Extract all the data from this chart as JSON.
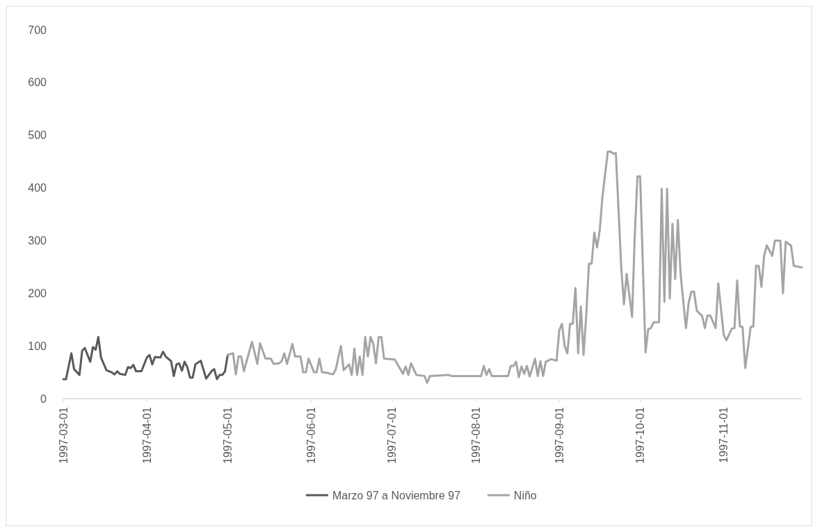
{
  "chart_data": {
    "type": "line",
    "xlim": [
      "1997-03-01",
      "1997-11-30"
    ],
    "xticks": [
      "1997-03-01",
      "1997-04-01",
      "1997-05-01",
      "1997-06-01",
      "1997-07-01",
      "1997-08-01",
      "1997-09-01",
      "1997-10-01",
      "1997-11-01"
    ],
    "ylim": [
      0,
      700
    ],
    "yticks": [
      0,
      100,
      200,
      300,
      400,
      500,
      600,
      700
    ],
    "grid": false,
    "legend": "bottom",
    "line_style": "solid",
    "marker": "none",
    "series": [
      {
        "name": "Marzo 97 a Noviembre 97",
        "color": "#595959",
        "x": [
          "1997-03-01",
          "1997-03-02",
          "1997-03-04",
          "1997-03-05",
          "1997-03-07",
          "1997-03-08",
          "1997-03-09",
          "1997-03-11",
          "1997-03-12",
          "1997-03-13",
          "1997-03-14",
          "1997-03-15",
          "1997-03-17",
          "1997-03-19",
          "1997-03-20",
          "1997-03-21",
          "1997-03-22",
          "1997-03-24",
          "1997-03-25",
          "1997-03-26",
          "1997-03-27",
          "1997-03-28",
          "1997-03-30",
          "1997-04-01",
          "1997-04-02",
          "1997-04-03",
          "1997-04-04",
          "1997-04-06",
          "1997-04-07",
          "1997-04-08",
          "1997-04-10",
          "1997-04-11",
          "1997-04-12",
          "1997-04-13",
          "1997-04-14",
          "1997-04-15",
          "1997-04-16",
          "1997-04-17",
          "1997-04-18",
          "1997-04-19",
          "1997-04-21",
          "1997-04-23",
          "1997-04-25",
          "1997-04-26",
          "1997-04-27",
          "1997-04-28",
          "1997-04-29",
          "1997-04-30",
          "1997-05-01"
        ],
        "values": [
          37,
          37,
          86,
          56,
          45,
          91,
          96,
          70,
          98,
          93,
          117,
          78,
          54,
          50,
          46,
          52,
          47,
          45,
          60,
          58,
          64,
          52,
          52,
          78,
          83,
          65,
          79,
          78,
          89,
          80,
          71,
          43,
          65,
          67,
          53,
          70,
          60,
          40,
          40,
          65,
          72,
          38,
          52,
          56,
          37,
          45,
          45,
          52,
          83
        ]
      },
      {
        "name": "Niño",
        "color": "#a5a5a5",
        "x": [
          "1997-05-01",
          "1997-05-03",
          "1997-05-04",
          "1997-05-05",
          "1997-05-06",
          "1997-05-07",
          "1997-05-10",
          "1997-05-12",
          "1997-05-13",
          "1997-05-15",
          "1997-05-17",
          "1997-05-18",
          "1997-05-20",
          "1997-05-21",
          "1997-05-22",
          "1997-05-23",
          "1997-05-25",
          "1997-05-26",
          "1997-05-28",
          "1997-05-29",
          "1997-05-30",
          "1997-05-31",
          "1997-06-02",
          "1997-06-03",
          "1997-06-04",
          "1997-06-05",
          "1997-06-07",
          "1997-06-09",
          "1997-06-10",
          "1997-06-12",
          "1997-06-13",
          "1997-06-15",
          "1997-06-16",
          "1997-06-17",
          "1997-06-18",
          "1997-06-19",
          "1997-06-20",
          "1997-06-21",
          "1997-06-22",
          "1997-06-23",
          "1997-06-24",
          "1997-06-25",
          "1997-06-26",
          "1997-06-27",
          "1997-06-28",
          "1997-07-02",
          "1997-07-05",
          "1997-07-06",
          "1997-07-07",
          "1997-07-08",
          "1997-07-10",
          "1997-07-13",
          "1997-07-14",
          "1997-07-15",
          "1997-07-22",
          "1997-07-23",
          "1997-08-03",
          "1997-08-04",
          "1997-08-05",
          "1997-08-06",
          "1997-08-07",
          "1997-08-13",
          "1997-08-14",
          "1997-08-15",
          "1997-08-16",
          "1997-08-17",
          "1997-08-18",
          "1997-08-19",
          "1997-08-20",
          "1997-08-21",
          "1997-08-23",
          "1997-08-24",
          "1997-08-25",
          "1997-08-26",
          "1997-08-27",
          "1997-08-29",
          "1997-08-31",
          "1997-09-01",
          "1997-09-02",
          "1997-09-03",
          "1997-09-04",
          "1997-09-05",
          "1997-09-06",
          "1997-09-07",
          "1997-09-08",
          "1997-09-09",
          "1997-09-10",
          "1997-09-11",
          "1997-09-12",
          "1997-09-13",
          "1997-09-14",
          "1997-09-15",
          "1997-09-16",
          "1997-09-17",
          "1997-09-19",
          "1997-09-20",
          "1997-09-21",
          "1997-09-22",
          "1997-09-24",
          "1997-09-25",
          "1997-09-26",
          "1997-09-28",
          "1997-09-29",
          "1997-09-30",
          "1997-10-01",
          "1997-10-03",
          "1997-10-04",
          "1997-10-05",
          "1997-10-06",
          "1997-10-08",
          "1997-10-09",
          "1997-10-10",
          "1997-10-11",
          "1997-10-12",
          "1997-10-13",
          "1997-10-14",
          "1997-10-15",
          "1997-10-16",
          "1997-10-18",
          "1997-10-19",
          "1997-10-20",
          "1997-10-21",
          "1997-10-22",
          "1997-10-24",
          "1997-10-25",
          "1997-10-26",
          "1997-10-27",
          "1997-10-29",
          "1997-10-30",
          "1997-11-01",
          "1997-11-02",
          "1997-11-04",
          "1997-11-05",
          "1997-11-06",
          "1997-11-07",
          "1997-11-08",
          "1997-11-09",
          "1997-11-11",
          "1997-11-12",
          "1997-11-13",
          "1997-11-14",
          "1997-11-15",
          "1997-11-16",
          "1997-11-17",
          "1997-11-19",
          "1997-11-20",
          "1997-11-22",
          "1997-11-23",
          "1997-11-24",
          "1997-11-26",
          "1997-11-27",
          "1997-11-30"
        ],
        "values": [
          83,
          86,
          46,
          80,
          80,
          52,
          108,
          66,
          105,
          76,
          76,
          66,
          67,
          71,
          86,
          66,
          104,
          80,
          80,
          50,
          50,
          76,
          50,
          50,
          76,
          50,
          49,
          46,
          54,
          100,
          54,
          65,
          45,
          95,
          45,
          80,
          45,
          117,
          80,
          117,
          104,
          67,
          117,
          117,
          76,
          74,
          47,
          61,
          45,
          67,
          45,
          43,
          30,
          43,
          45,
          43,
          43,
          62,
          45,
          56,
          43,
          43,
          62,
          62,
          70,
          41,
          61,
          47,
          62,
          42,
          76,
          43,
          71,
          43,
          70,
          75,
          72,
          130,
          142,
          100,
          86,
          142,
          142,
          210,
          86,
          175,
          83,
          157,
          256,
          256,
          315,
          287,
          319,
          382,
          469,
          469,
          465,
          466,
          248,
          179,
          237,
          155,
          308,
          422,
          422,
          88,
          132,
          134,
          145,
          145,
          398,
          184,
          398,
          190,
          332,
          227,
          339,
          237,
          134,
          182,
          203,
          203,
          167,
          157,
          134,
          158,
          158,
          134,
          219,
          121,
          111,
          133,
          134,
          224,
          137,
          136,
          58,
          136,
          137,
          252,
          252,
          212,
          271,
          291,
          271,
          300,
          300,
          200,
          298,
          290,
          252,
          249
        ]
      }
    ]
  }
}
